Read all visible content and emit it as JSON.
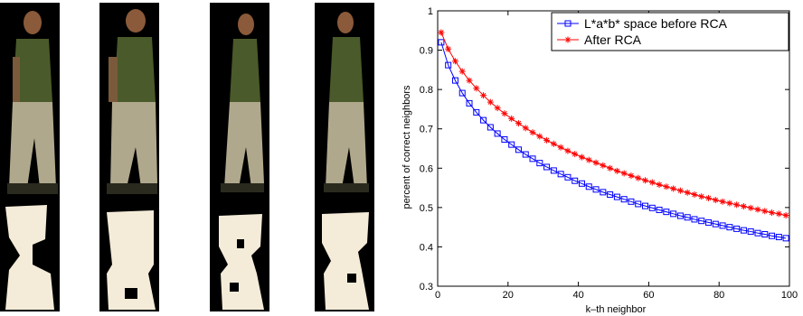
{
  "photos": [
    {
      "name": "person-photo-1"
    },
    {
      "name": "person-photo-2"
    },
    {
      "name": "person-photo-3"
    },
    {
      "name": "person-photo-4"
    }
  ],
  "chart_data": {
    "type": "line",
    "title": "",
    "xlabel": "k–th neighbor",
    "ylabel": "percent of correct neighbors",
    "xlim": [
      0,
      100
    ],
    "ylim": [
      0.3,
      1
    ],
    "xticks": [
      0,
      20,
      40,
      60,
      80,
      100
    ],
    "yticks": [
      0.3,
      0.4,
      0.5,
      0.6,
      0.7,
      0.8,
      0.9,
      1
    ],
    "ytick_labels": [
      "0.3",
      "0.4",
      "0.5",
      "0.6",
      "0.7",
      "0.8",
      "0.9",
      "1"
    ],
    "grid": false,
    "legend_position": "top-right",
    "x": [
      1,
      3,
      5,
      7,
      9,
      11,
      13,
      15,
      17,
      19,
      21,
      23,
      25,
      27,
      29,
      31,
      33,
      35,
      37,
      39,
      41,
      43,
      45,
      47,
      49,
      51,
      53,
      55,
      57,
      59,
      61,
      63,
      65,
      67,
      69,
      71,
      73,
      75,
      77,
      79,
      81,
      83,
      85,
      87,
      89,
      91,
      93,
      95,
      97,
      99
    ],
    "series": [
      {
        "name": "L*a*b* space before RCA",
        "color": "#0000ff",
        "marker": "square",
        "values": [
          0.92,
          0.862,
          0.823,
          0.791,
          0.765,
          0.742,
          0.722,
          0.704,
          0.688,
          0.673,
          0.66,
          0.647,
          0.635,
          0.624,
          0.613,
          0.603,
          0.594,
          0.585,
          0.577,
          0.568,
          0.561,
          0.553,
          0.546,
          0.539,
          0.533,
          0.527,
          0.521,
          0.515,
          0.509,
          0.504,
          0.499,
          0.494,
          0.489,
          0.484,
          0.479,
          0.475,
          0.47,
          0.466,
          0.462,
          0.458,
          0.454,
          0.45,
          0.446,
          0.442,
          0.439,
          0.435,
          0.432,
          0.428,
          0.425,
          0.422
        ]
      },
      {
        "name": "After RCA",
        "color": "#ff0000",
        "marker": "star",
        "values": [
          0.945,
          0.903,
          0.872,
          0.846,
          0.823,
          0.803,
          0.785,
          0.768,
          0.753,
          0.739,
          0.726,
          0.714,
          0.702,
          0.691,
          0.681,
          0.671,
          0.662,
          0.653,
          0.644,
          0.636,
          0.628,
          0.621,
          0.614,
          0.607,
          0.6,
          0.593,
          0.587,
          0.581,
          0.575,
          0.569,
          0.564,
          0.558,
          0.553,
          0.548,
          0.543,
          0.538,
          0.533,
          0.528,
          0.524,
          0.519,
          0.515,
          0.511,
          0.507,
          0.503,
          0.499,
          0.495,
          0.491,
          0.487,
          0.484,
          0.48
        ]
      }
    ]
  }
}
